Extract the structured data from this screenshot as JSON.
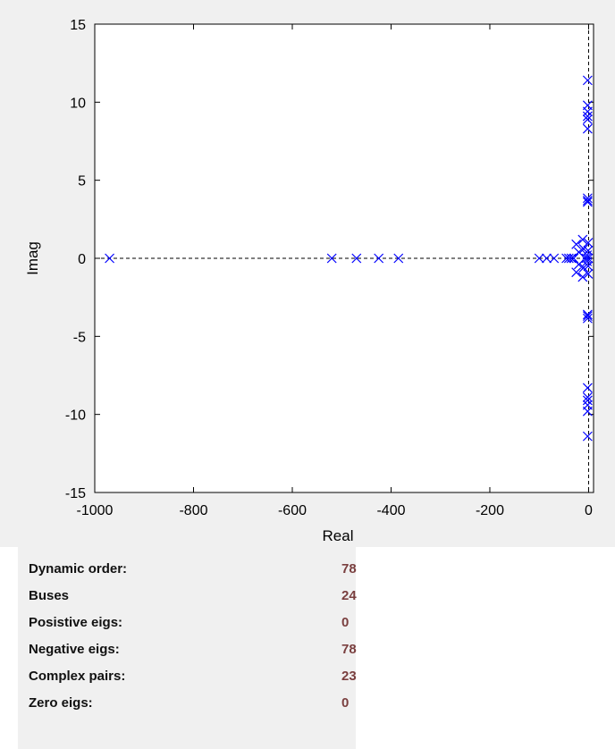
{
  "chart_data": {
    "type": "scatter",
    "xlabel": "Real",
    "ylabel": "Imag",
    "xlim": [
      -1000,
      10
    ],
    "ylim": [
      -15,
      15
    ],
    "xticks": [
      -1000,
      -800,
      -600,
      -400,
      -200,
      0
    ],
    "yticks": [
      -15,
      -10,
      -5,
      0,
      5,
      10,
      15
    ],
    "xtick_labels": [
      "-1000",
      "-800",
      "-600",
      "-400",
      "-200",
      "0"
    ],
    "ytick_labels": [
      "-15",
      "-10",
      "-5",
      "0",
      "5",
      "10",
      "15"
    ],
    "marker": "x",
    "marker_color": "#0000ff",
    "grid": false,
    "reference_lines": [
      {
        "orientation": "horizontal",
        "value": 0,
        "style": "dashed",
        "color": "#000000"
      },
      {
        "orientation": "vertical",
        "value": 0,
        "style": "dashed",
        "color": "#000000"
      }
    ],
    "points": [
      [
        -970,
        0
      ],
      [
        -520,
        0
      ],
      [
        -470,
        0
      ],
      [
        -425,
        0
      ],
      [
        -385,
        0
      ],
      [
        -100,
        0
      ],
      [
        -85,
        0
      ],
      [
        -70,
        0
      ],
      [
        -45,
        0
      ],
      [
        -40,
        0
      ],
      [
        -35,
        0
      ],
      [
        -30,
        0
      ],
      [
        -25,
        0.9
      ],
      [
        -25,
        -0.9
      ],
      [
        -20,
        0.4
      ],
      [
        -20,
        -0.4
      ],
      [
        -12,
        1.2
      ],
      [
        -12,
        -1.2
      ],
      [
        -10,
        0.6
      ],
      [
        -10,
        -0.6
      ],
      [
        -5,
        0
      ],
      [
        -3,
        0.2
      ],
      [
        -3,
        -0.2
      ],
      [
        -2,
        11.4
      ],
      [
        -2,
        -11.4
      ],
      [
        -2,
        9.8
      ],
      [
        -2,
        -9.8
      ],
      [
        -2,
        9.4
      ],
      [
        -2,
        -9.4
      ],
      [
        -2,
        9.1
      ],
      [
        -2,
        -9.1
      ],
      [
        -2,
        8.9
      ],
      [
        -2,
        -8.9
      ],
      [
        -2,
        8.3
      ],
      [
        -2,
        -8.3
      ],
      [
        -2,
        3.85
      ],
      [
        -2,
        -3.85
      ],
      [
        -2,
        3.7
      ],
      [
        -2,
        -3.7
      ],
      [
        -2,
        3.6
      ],
      [
        -2,
        -3.6
      ],
      [
        -1,
        1.0
      ],
      [
        -1,
        -1.0
      ],
      [
        -1,
        0.5
      ],
      [
        -1,
        -0.5
      ],
      [
        -1,
        0
      ]
    ]
  },
  "stats": [
    {
      "label": "Dynamic order:",
      "value": "78"
    },
    {
      "label": "Buses",
      "value": "24"
    },
    {
      "label": "Posistive eigs:",
      "value": "0"
    },
    {
      "label": "Negative eigs:",
      "value": "78"
    },
    {
      "label": "Complex pairs:",
      "value": "23"
    },
    {
      "label": "Zero eigs:",
      "value": "0"
    }
  ]
}
